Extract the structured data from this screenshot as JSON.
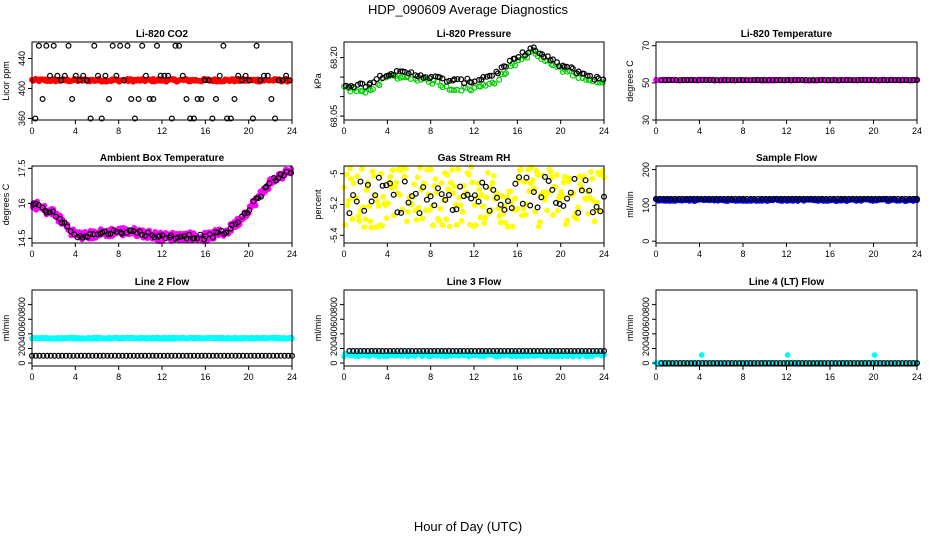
{
  "figure": {
    "title": "HDP_090609  Average Diagnostics",
    "xlabel": "Hour of Day (UTC)"
  },
  "chart_data": [
    {
      "type": "scatter",
      "title": "Li-820 CO2",
      "ylabel": "Licor ppm",
      "xlim": [
        0,
        24
      ],
      "ylim": [
        358,
        462
      ],
      "xticks": [
        0,
        4,
        8,
        12,
        16,
        20,
        24
      ],
      "yticks": [
        360,
        400,
        440
      ],
      "series": [
        {
          "color": "#ff0000",
          "marker": "filled",
          "x_range": [
            0,
            23.8
          ],
          "y_center": 411,
          "y_spread": 2
        },
        {
          "color": "#000000",
          "marker": "open",
          "x_range": [
            0.3,
            23.8
          ],
          "y_values": [
            360,
            386,
            411,
            417,
            457
          ]
        }
      ]
    },
    {
      "type": "scatter",
      "title": "Li-820 Pressure",
      "ylabel": "kPa",
      "xlim": [
        0,
        24
      ],
      "ylim": [
        68.04,
        68.24
      ],
      "xticks": [
        0,
        4,
        8,
        12,
        16,
        20,
        24
      ],
      "yticks": [
        68.05,
        68.1,
        68.15,
        68.2
      ],
      "yticklabels": [
        "68.05",
        "",
        "",
        "68.20"
      ],
      "series": [
        {
          "color": "#00cc00",
          "marker": "open",
          "trend_x": [
            0,
            2,
            4,
            6,
            8,
            10,
            12,
            14,
            16,
            17.5,
            18,
            20,
            22,
            24
          ],
          "trend_y": [
            68.12,
            68.11,
            68.15,
            68.15,
            68.14,
            68.12,
            68.12,
            68.14,
            68.19,
            68.215,
            68.2,
            68.17,
            68.15,
            68.13
          ]
        },
        {
          "color": "#000000",
          "marker": "open",
          "trend_x": [
            0,
            2,
            4,
            6,
            8,
            10,
            12,
            14,
            16,
            17.5,
            18,
            20,
            22,
            24
          ],
          "trend_y": [
            68.13,
            68.13,
            68.16,
            68.16,
            68.15,
            68.14,
            68.14,
            68.16,
            68.2,
            68.225,
            68.21,
            68.18,
            68.16,
            68.14
          ]
        }
      ]
    },
    {
      "type": "scatter",
      "title": "Li-820 Temperature",
      "ylabel": "degrees C",
      "xlim": [
        0,
        24
      ],
      "ylim": [
        30,
        72
      ],
      "xticks": [
        0,
        4,
        8,
        12,
        16,
        20,
        24
      ],
      "yticks": [
        30,
        50,
        70
      ],
      "series": [
        {
          "color": "#ff00ff",
          "marker": "filled",
          "x_range": [
            0,
            24
          ],
          "y_center": 51.5,
          "y_spread": 0.3
        },
        {
          "color": "#000000",
          "marker": "open",
          "x_range": [
            0.5,
            24
          ],
          "y_center": 51.5,
          "y_spread": 0
        }
      ]
    },
    {
      "type": "scatter",
      "title": "Ambient Box Temperature",
      "ylabel": "degrees C",
      "xlim": [
        0,
        24
      ],
      "ylim": [
        14.3,
        17.6
      ],
      "xticks": [
        0,
        4,
        8,
        12,
        16,
        20,
        24
      ],
      "yticks": [
        14.5,
        16.0,
        17.5
      ],
      "series": [
        {
          "color": "#ff00ff",
          "marker": "filled",
          "trend_x": [
            0,
            1,
            2,
            3,
            4,
            5,
            6,
            8,
            10,
            12,
            14,
            16,
            18,
            19,
            20,
            21,
            22,
            23,
            24
          ],
          "trend_y": [
            16.0,
            15.75,
            15.6,
            15.1,
            14.65,
            14.6,
            14.7,
            14.8,
            14.75,
            14.55,
            14.6,
            14.55,
            14.8,
            15.2,
            15.75,
            16.3,
            16.9,
            17.2,
            17.4
          ]
        },
        {
          "color": "#000000",
          "marker": "open",
          "trend_x": [
            0,
            1,
            2,
            3,
            4,
            5,
            6,
            8,
            10,
            12,
            14,
            16,
            18,
            19,
            20,
            21,
            22,
            23,
            24
          ],
          "trend_y": [
            16.0,
            15.75,
            15.6,
            15.1,
            14.65,
            14.6,
            14.7,
            14.8,
            14.75,
            14.55,
            14.6,
            14.55,
            14.8,
            15.2,
            15.75,
            16.3,
            16.9,
            17.2,
            17.4
          ]
        }
      ]
    },
    {
      "type": "scatter",
      "title": "Gas Stream RH",
      "ylabel": "percent",
      "xlim": [
        0,
        24
      ],
      "ylim": [
        -5.45,
        -4.95
      ],
      "xticks": [
        0,
        4,
        8,
        12,
        16,
        20,
        24
      ],
      "yticks": [
        -5.4,
        -5.2,
        -5.0
      ],
      "series": [
        {
          "color": "#ffff00",
          "marker": "filled",
          "x_range": [
            0,
            24
          ],
          "y_center": -5.15,
          "y_spread": 0.2
        },
        {
          "color": "#000000",
          "marker": "open",
          "x_range": [
            0.5,
            24
          ],
          "y_center": -5.14,
          "y_spread": 0.12
        }
      ]
    },
    {
      "type": "scatter",
      "title": "Sample Flow",
      "ylabel": "ml/min",
      "xlim": [
        0,
        24
      ],
      "ylim": [
        -5,
        210
      ],
      "xticks": [
        0,
        4,
        8,
        12,
        16,
        20,
        24
      ],
      "yticks": [
        0,
        100,
        200
      ],
      "series": [
        {
          "color": "#0000ff",
          "marker": "filled",
          "x_range": [
            0,
            24
          ],
          "y_center": 115,
          "y_spread": 3
        },
        {
          "color": "#000000",
          "marker": "open",
          "x_range": [
            0,
            24
          ],
          "y_center": 118,
          "y_spread": 0
        }
      ]
    },
    {
      "type": "scatter",
      "title": "Line 2 Flow",
      "ylabel": "ml/min",
      "xlim": [
        0,
        24
      ],
      "ylim": [
        -40,
        1000
      ],
      "xticks": [
        0,
        4,
        8,
        12,
        16,
        20,
        24
      ],
      "yticks": [
        0,
        200,
        400,
        600,
        800
      ],
      "series": [
        {
          "color": "#00ffff",
          "marker": "filled",
          "x_range": [
            0,
            24
          ],
          "y_center": 340,
          "y_spread": 8
        },
        {
          "color": "#000000",
          "marker": "open",
          "x_range": [
            0,
            24
          ],
          "y_center": 100,
          "y_spread": 0
        }
      ]
    },
    {
      "type": "scatter",
      "title": "Line 3 Flow",
      "ylabel": "ml/min",
      "xlim": [
        0,
        24
      ],
      "ylim": [
        -40,
        1000
      ],
      "xticks": [
        0,
        4,
        8,
        12,
        16,
        20,
        24
      ],
      "yticks": [
        0,
        200,
        400,
        600,
        800
      ],
      "series": [
        {
          "color": "#00ffff",
          "marker": "filled",
          "x_range": [
            0,
            24
          ],
          "y_center": 110,
          "y_spread": 20
        },
        {
          "color": "#000000",
          "marker": "open",
          "x_range": [
            0.5,
            24
          ],
          "y_center": 165,
          "y_spread": 0
        }
      ]
    },
    {
      "type": "scatter",
      "title": "Line 4 (LT) Flow",
      "ylabel": "ml/min",
      "xlim": [
        0,
        24
      ],
      "ylim": [
        -40,
        1000
      ],
      "xticks": [
        0,
        4,
        8,
        12,
        16,
        20,
        24
      ],
      "yticks": [
        0,
        200,
        400,
        600,
        800
      ],
      "series": [
        {
          "color": "#00ffff",
          "marker": "filled",
          "x_range": [
            0,
            24
          ],
          "y_center": 0,
          "y_spread": 2,
          "extra_x": [
            4.2,
            12.1,
            20.1
          ],
          "extra_y": [
            110,
            110,
            110
          ]
        },
        {
          "color": "#000000",
          "marker": "open",
          "x_range": [
            0.5,
            24
          ],
          "y_center": 0,
          "y_spread": 0
        }
      ]
    }
  ]
}
